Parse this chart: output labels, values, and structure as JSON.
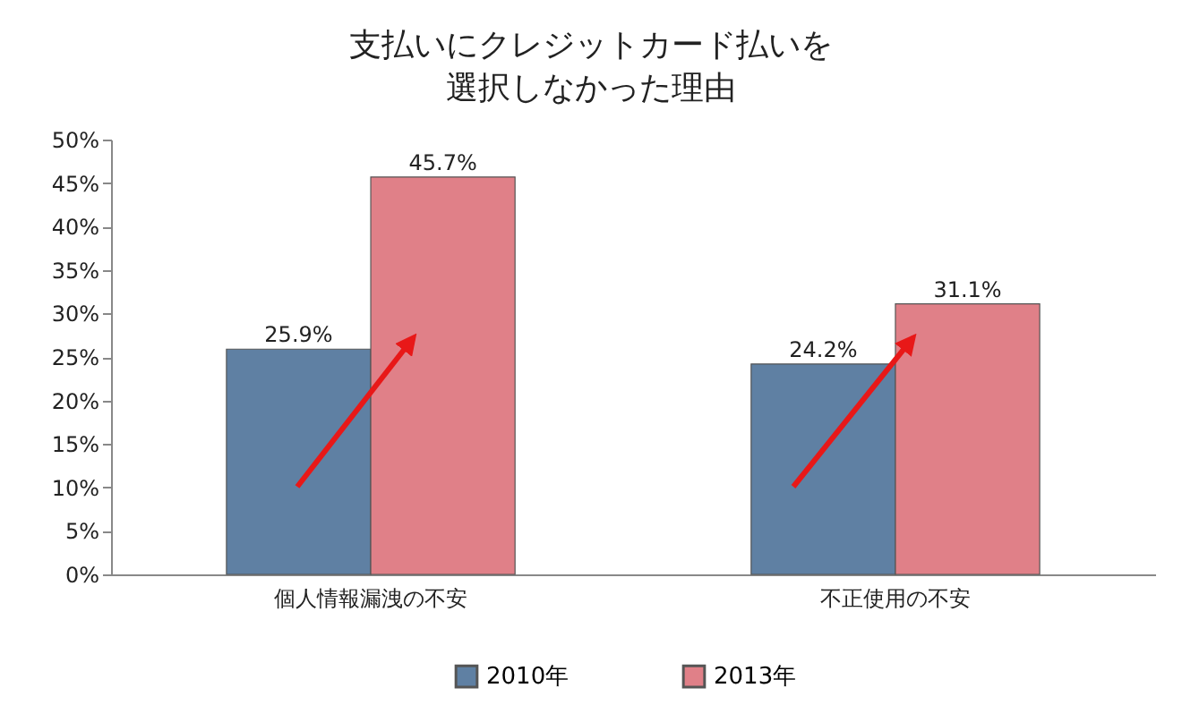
{
  "chart_data": {
    "type": "bar",
    "title": "支払いにクレジットカード払いを選択しなかった理由",
    "categories": [
      "個人情報漏洩の不安",
      "不正使用の不安"
    ],
    "series": [
      {
        "name": "2010年",
        "color": "#5f80a3",
        "values": [
          25.9,
          24.2
        ],
        "value_labels": [
          "25.9%",
          "24.2%"
        ]
      },
      {
        "name": "2013年",
        "color": "#e08088",
        "values": [
          45.7,
          31.1
        ],
        "value_labels": [
          "45.7%",
          "31.1%"
        ]
      }
    ],
    "ylim": [
      0,
      50
    ],
    "yticks": [
      {
        "value": 0,
        "label": "0%"
      },
      {
        "value": 5,
        "label": "5%"
      },
      {
        "value": 10,
        "label": "10%"
      },
      {
        "value": 15,
        "label": "15%"
      },
      {
        "value": 20,
        "label": "20%"
      },
      {
        "value": 25,
        "label": "25%"
      },
      {
        "value": 30,
        "label": "30%"
      },
      {
        "value": 35,
        "label": "35%"
      },
      {
        "value": 40,
        "label": "40%"
      },
      {
        "value": 45,
        "label": "45%"
      },
      {
        "value": 50,
        "label": "50%"
      }
    ],
    "legend": "bottom"
  }
}
